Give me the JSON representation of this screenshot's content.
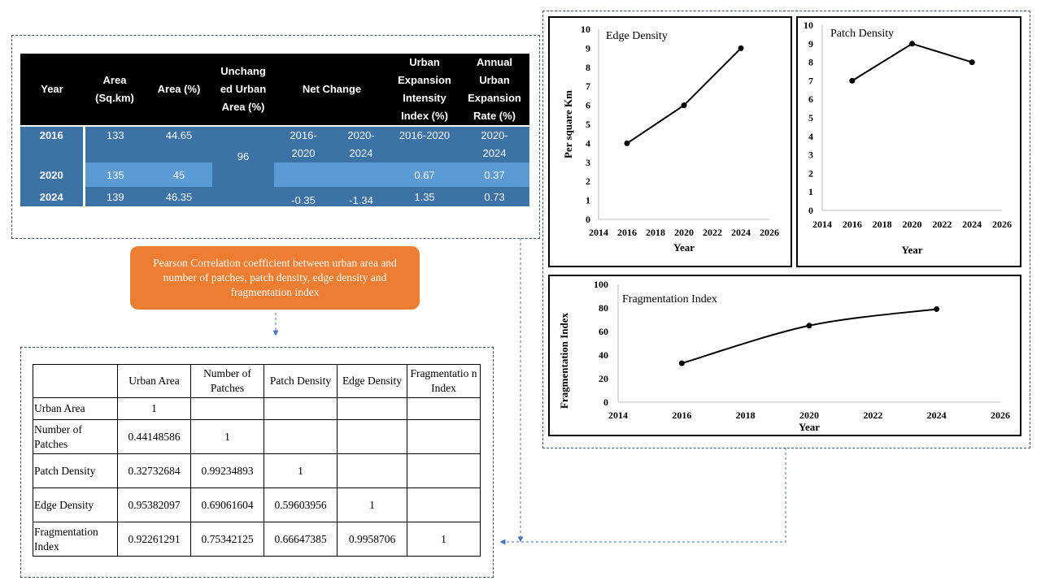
{
  "urban_table": {
    "headers": {
      "year": "Year",
      "area_sqkm": [
        "Area",
        "(Sq.km)"
      ],
      "area_pct": "Area (%)",
      "unchanged": [
        "Unchang",
        "ed Urban",
        "Area (%)"
      ],
      "net_change": "Net Change",
      "intensity": [
        "Urban",
        "Expansion",
        "Intensity",
        "Index (%)"
      ],
      "annual_rate": [
        "Annual",
        "Urban",
        "Expansion",
        "Rate (%)"
      ]
    },
    "unchanged_value": "96",
    "net_change_periods": [
      "2016-",
      "2020",
      "2020-",
      "2024"
    ],
    "intensity_period": "2016-2020",
    "annual_rate_period": [
      "2020-",
      "2024"
    ],
    "rows": [
      {
        "year": "2016",
        "area": "133",
        "area_pct": "44.65"
      },
      {
        "year": "2020",
        "area": "135",
        "area_pct": "45",
        "intensity": "0.67",
        "annual_rate": "0.37"
      },
      {
        "year": "2024",
        "area": "139",
        "area_pct": "46.35",
        "net1": "-0.35",
        "net2": "-1.34",
        "intensity": "1.35",
        "annual_rate": "0.73"
      }
    ]
  },
  "pearson_box": {
    "text": "Pearson Correlation coefficient between urban area and number of patches, patch density, edge density and fragmentation index",
    "color": "#ed7d31"
  },
  "correlation_table": {
    "columns": [
      "Urban Area",
      "Number of Patches",
      "Patch Density",
      "Edge Density",
      "Fragmentatio n Index"
    ],
    "rows": [
      {
        "label": "Urban Area",
        "values": [
          "1",
          "",
          "",
          "",
          ""
        ]
      },
      {
        "label": "Number of Patches",
        "values": [
          "0.44148586",
          "1",
          "",
          "",
          ""
        ]
      },
      {
        "label": "Patch Density",
        "values": [
          "0.32732684",
          "0.99234893",
          "1",
          "",
          ""
        ]
      },
      {
        "label": "Edge Density",
        "values": [
          "0.95382097",
          "0.69061604",
          "0.59603956",
          "1",
          ""
        ]
      },
      {
        "label": "Fragmentation Index",
        "values": [
          "0.92261291",
          "0.75342125",
          "0.66647385",
          "0.9958706",
          "1"
        ]
      }
    ]
  },
  "chart_data": [
    {
      "type": "line",
      "title": "Edge Density",
      "xlabel": "Year",
      "ylabel": "Per square Km",
      "x": [
        2016,
        2020,
        2024
      ],
      "y": [
        4,
        6,
        9
      ],
      "xlim": [
        2014,
        2026
      ],
      "ylim": [
        0,
        10
      ],
      "xticks": [
        "2014",
        "2016",
        "2018",
        "2020",
        "2022",
        "2024",
        "2026"
      ],
      "yticks": [
        "0",
        "1",
        "2",
        "3",
        "4",
        "5",
        "6",
        "7",
        "8",
        "9",
        "10"
      ]
    },
    {
      "type": "line",
      "title": "Patch  Density",
      "xlabel": "Year",
      "ylabel": "",
      "x": [
        2016,
        2020,
        2024
      ],
      "y": [
        7,
        9,
        8
      ],
      "xlim": [
        2014,
        2026
      ],
      "ylim": [
        0,
        10
      ],
      "xticks": [
        "2014",
        "2016",
        "2018",
        "2020",
        "2022",
        "2024",
        "2026"
      ],
      "yticks": [
        "0",
        "1",
        "2",
        "3",
        "4",
        "5",
        "6",
        "7",
        "8",
        "9",
        "10"
      ]
    },
    {
      "type": "line",
      "title": "Fragmentation Index",
      "xlabel": "Year",
      "ylabel": "Fragmentation Index",
      "x": [
        2016,
        2020,
        2024
      ],
      "y": [
        33,
        65,
        79
      ],
      "xlim": [
        2014,
        2026
      ],
      "ylim": [
        0,
        100
      ],
      "xticks": [
        "2014",
        "2016",
        "2018",
        "2020",
        "2022",
        "2024",
        "2026"
      ],
      "yticks": [
        "0",
        "20",
        "40",
        "60",
        "80",
        "100"
      ]
    }
  ]
}
